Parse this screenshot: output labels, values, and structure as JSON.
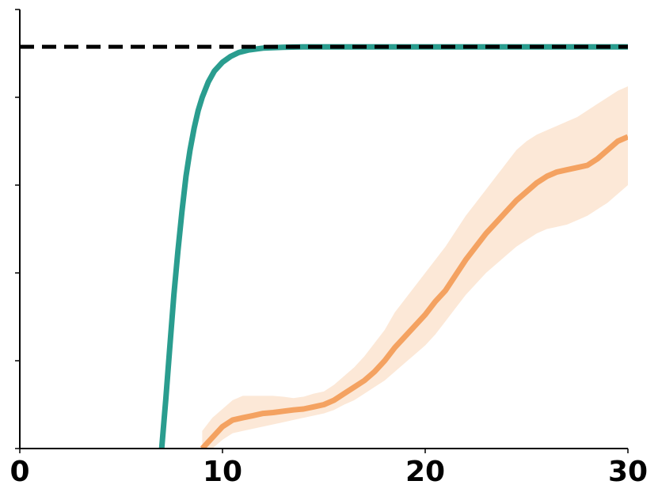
{
  "chart_data": {
    "type": "line",
    "title": "",
    "xlabel": "",
    "ylabel": "",
    "xlim": [
      0,
      30
    ],
    "ylim": [
      0,
      1
    ],
    "x_ticks": [
      0,
      10,
      20,
      30
    ],
    "x_tick_labels": [
      "0",
      "10",
      "20",
      "30"
    ],
    "y_ticks": [
      0,
      0.2,
      0.4,
      0.6,
      0.8,
      1.0
    ],
    "y_tick_labels": [
      "",
      "",
      "",
      "",
      "",
      ""
    ],
    "grid": false,
    "reference_line": {
      "y": 0.915,
      "style": "dashed",
      "color": "#000000"
    },
    "series": [
      {
        "color": "#2a9d8f",
        "x": [
          7.0,
          7.2,
          7.4,
          7.6,
          7.8,
          8.0,
          8.2,
          8.4,
          8.6,
          8.8,
          9.0,
          9.3,
          9.6,
          10.0,
          10.4,
          10.8,
          11.3,
          12.0,
          13.0,
          14.0,
          16.0,
          20.0,
          25.0,
          30.0
        ],
        "y": [
          0.0,
          0.11,
          0.23,
          0.35,
          0.45,
          0.54,
          0.62,
          0.68,
          0.73,
          0.77,
          0.8,
          0.835,
          0.86,
          0.88,
          0.893,
          0.902,
          0.908,
          0.912,
          0.914,
          0.915,
          0.915,
          0.915,
          0.915,
          0.915
        ]
      },
      {
        "color": "#f4a261",
        "x": [
          9.0,
          9.5,
          10.0,
          10.5,
          11.0,
          11.5,
          12.0,
          12.5,
          13.0,
          13.5,
          14.0,
          14.5,
          15.0,
          15.5,
          16.0,
          16.5,
          17.0,
          17.5,
          18.0,
          18.5,
          19.0,
          19.5,
          20.0,
          20.5,
          21.0,
          21.5,
          22.0,
          22.5,
          23.0,
          23.5,
          24.0,
          24.5,
          25.0,
          25.5,
          26.0,
          26.5,
          27.0,
          27.5,
          28.0,
          28.5,
          29.0,
          29.5,
          30.0
        ],
        "y": [
          0.0,
          0.025,
          0.05,
          0.065,
          0.07,
          0.075,
          0.08,
          0.082,
          0.085,
          0.088,
          0.09,
          0.095,
          0.1,
          0.11,
          0.125,
          0.14,
          0.155,
          0.175,
          0.2,
          0.23,
          0.255,
          0.28,
          0.305,
          0.335,
          0.36,
          0.395,
          0.43,
          0.46,
          0.49,
          0.515,
          0.54,
          0.565,
          0.585,
          0.605,
          0.62,
          0.63,
          0.635,
          0.64,
          0.645,
          0.66,
          0.68,
          0.7,
          0.71
        ],
        "lower": [
          0.0,
          0.0,
          0.02,
          0.035,
          0.04,
          0.045,
          0.05,
          0.055,
          0.06,
          0.065,
          0.07,
          0.075,
          0.08,
          0.088,
          0.1,
          0.11,
          0.125,
          0.14,
          0.155,
          0.175,
          0.195,
          0.215,
          0.235,
          0.26,
          0.29,
          0.32,
          0.35,
          0.375,
          0.4,
          0.42,
          0.44,
          0.46,
          0.475,
          0.49,
          0.5,
          0.505,
          0.51,
          0.52,
          0.53,
          0.545,
          0.56,
          0.58,
          0.6
        ],
        "upper": [
          0.04,
          0.07,
          0.09,
          0.11,
          0.12,
          0.12,
          0.12,
          0.12,
          0.118,
          0.115,
          0.118,
          0.125,
          0.13,
          0.145,
          0.165,
          0.185,
          0.21,
          0.24,
          0.27,
          0.31,
          0.34,
          0.37,
          0.4,
          0.43,
          0.46,
          0.495,
          0.53,
          0.56,
          0.59,
          0.62,
          0.65,
          0.68,
          0.7,
          0.715,
          0.725,
          0.735,
          0.745,
          0.755,
          0.77,
          0.785,
          0.8,
          0.815,
          0.825
        ]
      }
    ]
  }
}
